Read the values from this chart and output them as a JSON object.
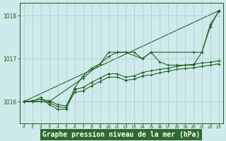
{
  "background_color": "#ceeaea",
  "plot_bg_color": "#ceeaea",
  "label_bg_color": "#2d6b2d",
  "grid_color": "#a8d0d0",
  "line_color": "#1a5c1a",
  "xlabel": "Graphe pression niveau de la mer (hPa)",
  "xlabel_fontsize": 7,
  "tick_color": "#1a5c1a",
  "ylim": [
    1015.5,
    1018.3
  ],
  "xlim": [
    -0.5,
    23.5
  ],
  "yticks": [
    1016,
    1017,
    1018
  ],
  "xticks": [
    0,
    1,
    2,
    3,
    4,
    5,
    6,
    7,
    8,
    9,
    10,
    11,
    12,
    13,
    14,
    15,
    16,
    17,
    18,
    19,
    20,
    21,
    22,
    23
  ],
  "series": [
    {
      "x": [
        0,
        1,
        2,
        3,
        4,
        5,
        6,
        7,
        8,
        9,
        10,
        11,
        12,
        13,
        14,
        15,
        16,
        17,
        18,
        19,
        20,
        21,
        22,
        23
      ],
      "y": [
        1016.0,
        1016.0,
        1016.1,
        1015.93,
        1015.82,
        1015.82,
        1016.32,
        1016.6,
        1016.78,
        1016.88,
        1017.15,
        1017.15,
        1017.15,
        1017.15,
        1017.0,
        1017.15,
        1016.93,
        1016.85,
        1016.85,
        1016.85,
        1016.85,
        1017.15,
        1017.8,
        1018.1
      ]
    },
    {
      "x": [
        0,
        1,
        2,
        3,
        4,
        5,
        6,
        7,
        8,
        9,
        10,
        11,
        12,
        13,
        14,
        15,
        16,
        17,
        18,
        19,
        20,
        21,
        22,
        23
      ],
      "y": [
        1016.0,
        1016.02,
        1016.05,
        1016.02,
        1015.93,
        1015.9,
        1016.28,
        1016.33,
        1016.45,
        1016.55,
        1016.65,
        1016.65,
        1016.57,
        1016.6,
        1016.68,
        1016.72,
        1016.75,
        1016.78,
        1016.82,
        1016.85,
        1016.87,
        1016.9,
        1016.92,
        1016.95
      ]
    },
    {
      "x": [
        0,
        1,
        2,
        3,
        4,
        5,
        6,
        7,
        8,
        9,
        10,
        11,
        12,
        13,
        14,
        15,
        16,
        17,
        18,
        19,
        20,
        21,
        22,
        23
      ],
      "y": [
        1016.0,
        1016.0,
        1016.0,
        1015.98,
        1015.88,
        1015.86,
        1016.22,
        1016.25,
        1016.37,
        1016.47,
        1016.57,
        1016.57,
        1016.5,
        1016.52,
        1016.6,
        1016.62,
        1016.67,
        1016.71,
        1016.75,
        1016.77,
        1016.79,
        1016.82,
        1016.85,
        1016.88
      ]
    },
    {
      "x": [
        0,
        3,
        7,
        10,
        11,
        12,
        14,
        15,
        20,
        21,
        22,
        23
      ],
      "y": [
        1016.0,
        1016.0,
        1016.55,
        1017.05,
        1017.15,
        1017.15,
        1017.0,
        1017.15,
        1017.15,
        1017.15,
        1017.75,
        1018.12
      ]
    }
  ]
}
